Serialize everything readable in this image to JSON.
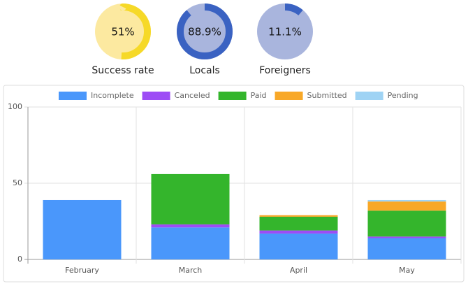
{
  "donuts": [
    {
      "value": 51,
      "value_label": "51%",
      "caption": "Success rate",
      "color": "#f6d928",
      "track": "#fce9a0"
    },
    {
      "value": 88.9,
      "value_label": "88.9%",
      "caption": "Locals",
      "color": "#3a62c2",
      "track": "#a9b5dd"
    },
    {
      "value": 11.1,
      "value_label": "11.1%",
      "caption": "Foreigners",
      "color": "#3a62c2",
      "track": "#a9b5dd"
    }
  ],
  "chart_data": {
    "type": "stacked_bar",
    "categories": [
      "February",
      "March",
      "April",
      "May"
    ],
    "series": [
      {
        "name": "Incomplete",
        "color": "#4a97fb",
        "values": [
          39,
          21,
          17,
          14
        ]
      },
      {
        "name": "Canceled",
        "color": "#9d4cf5",
        "values": [
          0,
          2,
          2,
          1
        ]
      },
      {
        "name": "Paid",
        "color": "#34b52c",
        "values": [
          0,
          33,
          9,
          17
        ]
      },
      {
        "name": "Submitted",
        "color": "#f8a828",
        "values": [
          0,
          0,
          1,
          6
        ]
      },
      {
        "name": "Pending",
        "color": "#9fd3f4",
        "values": [
          0,
          0,
          0,
          1
        ]
      }
    ],
    "ylim": [
      0,
      100
    ],
    "yticks": [
      0,
      50,
      100
    ],
    "grid": true
  }
}
